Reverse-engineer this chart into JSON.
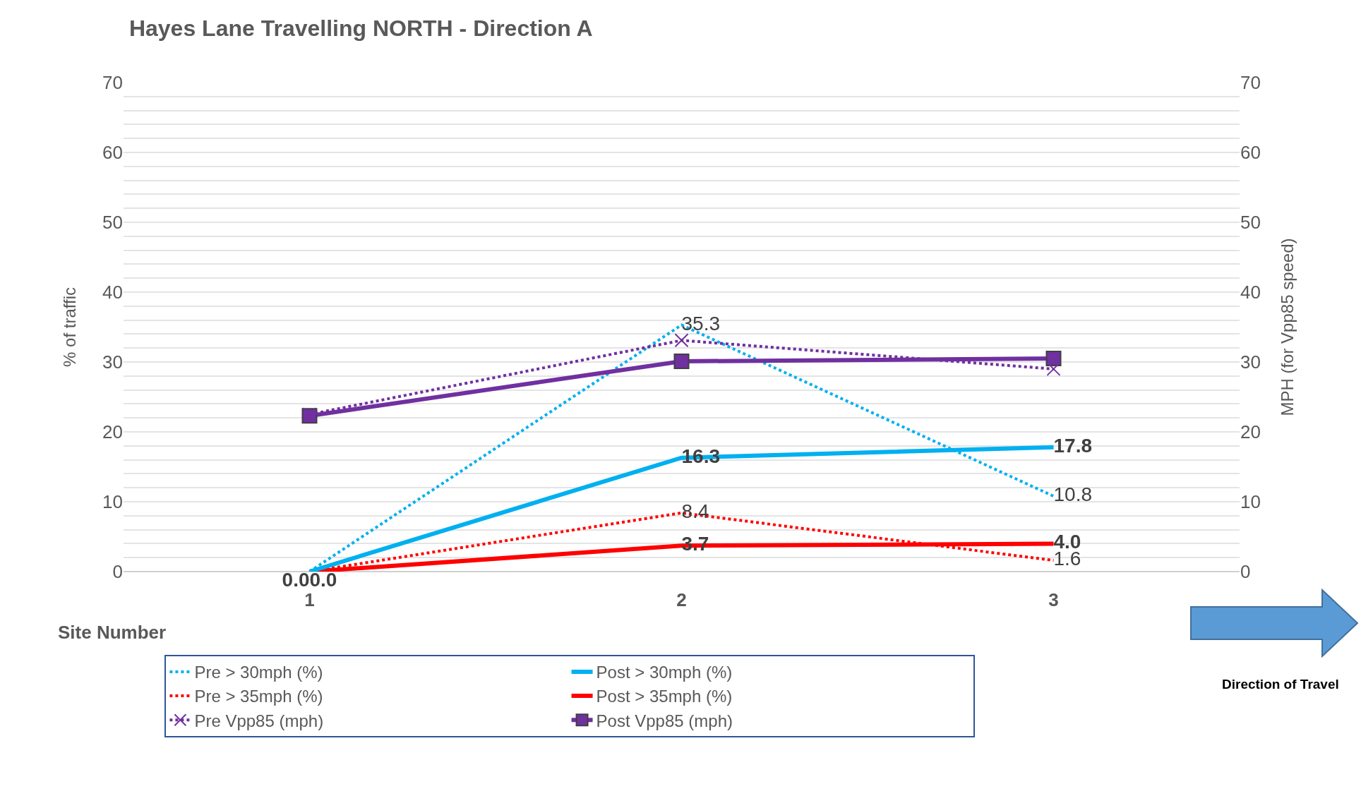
{
  "chart_data": {
    "type": "line",
    "title": "Hayes Lane Travelling NORTH - Direction A",
    "xlabel": "Site Number",
    "ylabel": "% of traffic",
    "y2label": "MPH (for Vpp85 speed)",
    "categories": [
      "1",
      "2",
      "3"
    ],
    "series": [
      {
        "name": "Pre > 30mph (%)",
        "color": "#00b0f0",
        "line_style": "dotted",
        "values": [
          0,
          35.3,
          10.8
        ],
        "value_labels": [
          null,
          "35.3",
          "10.8"
        ]
      },
      {
        "name": "Post > 30mph (%)",
        "color": "#00b0f0",
        "line_style": "solid",
        "values": [
          0.0,
          16.3,
          17.8
        ],
        "value_labels": [
          "0.0",
          "16.3",
          "17.8"
        ]
      },
      {
        "name": "Pre > 35mph (%)",
        "color": "#ff0000",
        "line_style": "dotted",
        "values": [
          0,
          8.4,
          1.6
        ],
        "value_labels": [
          null,
          "8.4",
          "1.6"
        ]
      },
      {
        "name": "Post > 35mph (%)",
        "color": "#ff0000",
        "line_style": "solid",
        "values": [
          0.0,
          3.7,
          4.0
        ],
        "value_labels": [
          "0.0",
          "3.7",
          "4.0"
        ]
      },
      {
        "name": "Pre Vpp85 (mph)",
        "color": "#7030a0",
        "line_style": "dotted",
        "marker": "cross",
        "axis": "y2",
        "values": [
          22.5,
          33.1,
          29.0
        ]
      },
      {
        "name": "Post Vpp85 (mph)",
        "color": "#7030a0",
        "line_style": "solid",
        "marker": "square",
        "axis": "y2",
        "values": [
          22.3,
          30.1,
          30.5
        ]
      }
    ],
    "ylim": [
      0,
      70
    ],
    "yticks": [
      0,
      {
        "value": 2,
        "label": null
      },
      {
        "value": 4,
        "label": null
      },
      {
        "value": 6,
        "label": null
      },
      {
        "value": 8,
        "label": null
      },
      10,
      {
        "value": 12,
        "label": null
      },
      {
        "value": 14,
        "label": null
      },
      {
        "value": 16,
        "label": null
      },
      {
        "value": 18,
        "label": null
      },
      20,
      {
        "value": 22,
        "label": null
      },
      {
        "value": 24,
        "label": null
      },
      {
        "value": 26,
        "label": null
      },
      {
        "value": 28,
        "label": null
      },
      30,
      {
        "value": 32,
        "label": null
      },
      {
        "value": 34,
        "label": null
      },
      {
        "value": 36,
        "label": null
      },
      {
        "value": 38,
        "label": null
      },
      40,
      {
        "value": 42,
        "label": null
      },
      {
        "value": 44,
        "label": null
      },
      {
        "value": 46,
        "label": null
      },
      {
        "value": 48,
        "label": null
      },
      50,
      {
        "value": 52,
        "label": null
      },
      {
        "value": 54,
        "label": null
      },
      {
        "value": 56,
        "label": null
      },
      {
        "value": 58,
        "label": null
      },
      60,
      {
        "value": 62,
        "label": null
      },
      {
        "value": 64,
        "label": null
      },
      {
        "value": 66,
        "label": null
      },
      {
        "value": 68,
        "label": null
      },
      70
    ],
    "y2lim": [
      0,
      70
    ],
    "y2ticks": [
      0,
      10,
      20,
      30,
      40,
      50,
      60,
      70
    ],
    "grid": "y",
    "legend": "bottom",
    "annotations": [
      "Direction of Travel"
    ]
  }
}
